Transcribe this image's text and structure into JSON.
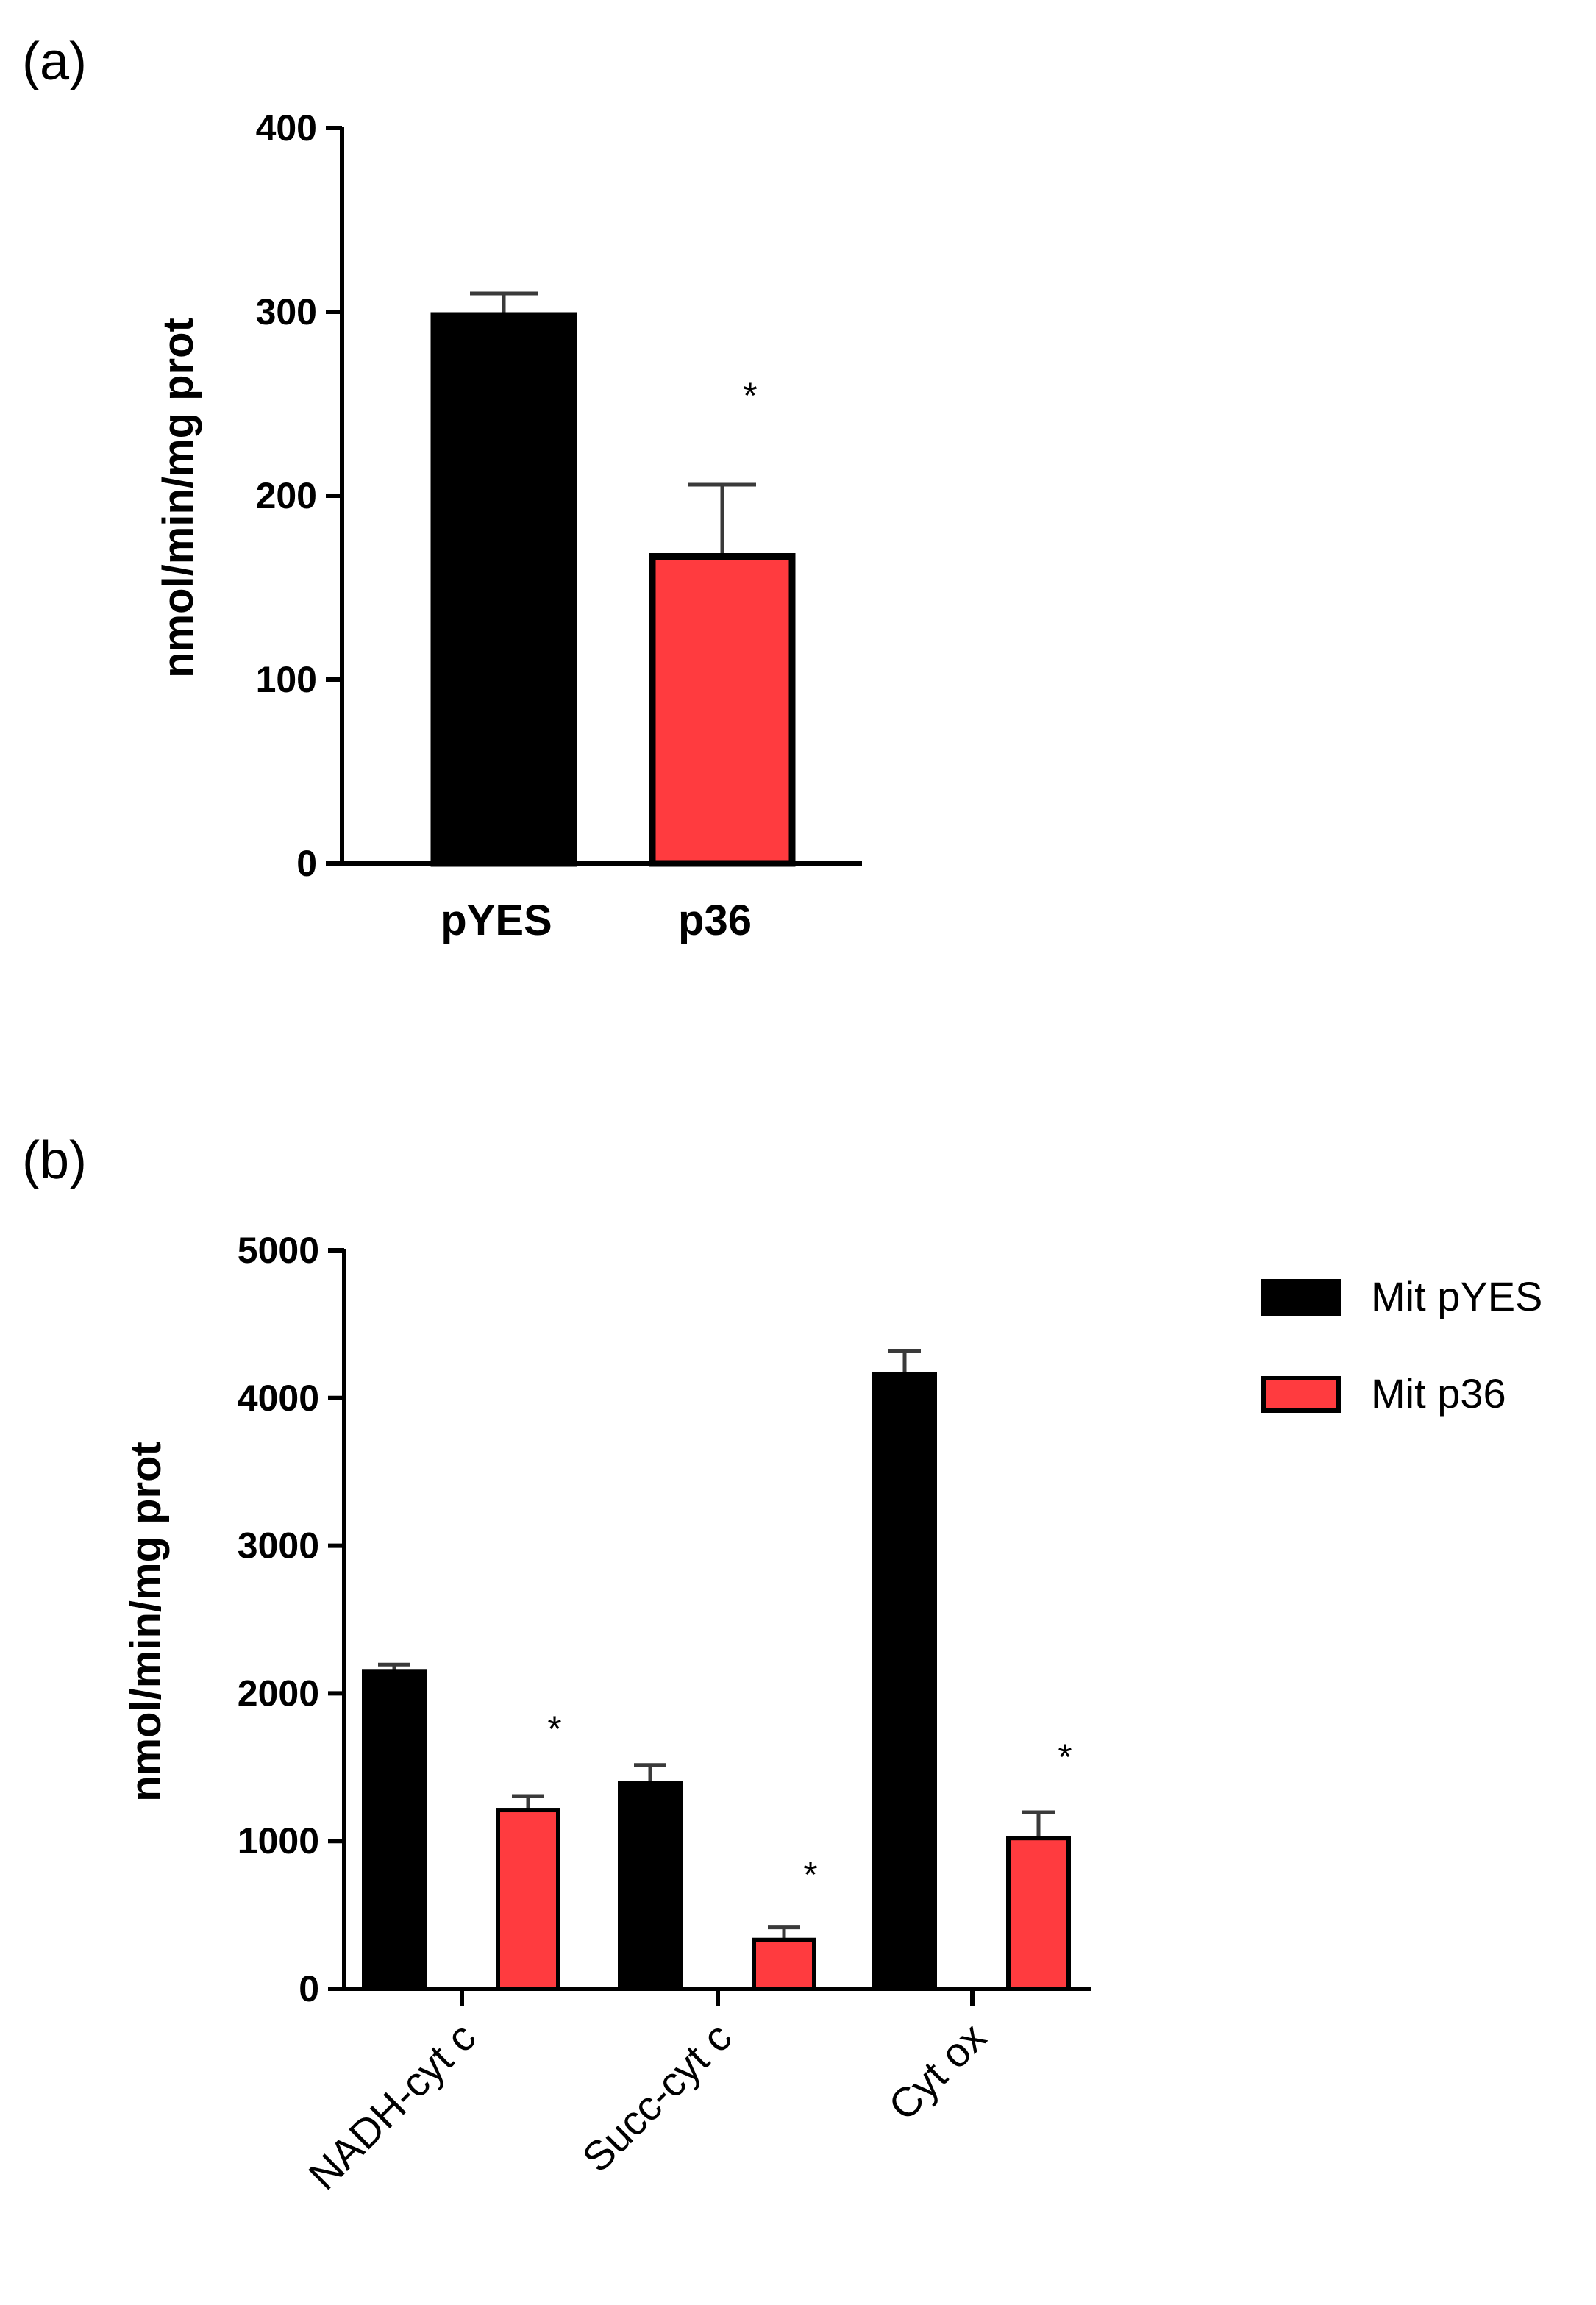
{
  "panels": {
    "a": {
      "label": "(a)"
    },
    "b": {
      "label": "(b)"
    }
  },
  "colors": {
    "control": "#000000",
    "treated": "#ff3b3f",
    "outline": "#000000",
    "error_bar_a": "#3a3a3a",
    "error_bar_b": "#3a3a3a"
  },
  "chart_data": [
    {
      "type": "bar",
      "panel": "a",
      "title": "",
      "xlabel": "",
      "ylabel": "nmol/min/mg prot",
      "ylim": [
        0,
        400
      ],
      "yticks": [
        "0",
        "100",
        "200",
        "300",
        "400"
      ],
      "categories": [
        "pYES",
        "p36"
      ],
      "values": [
        298,
        167
      ],
      "errors": [
        12,
        39
      ],
      "significance": [
        "",
        "*"
      ],
      "colors": [
        "#000000",
        "#ff3b3f"
      ]
    },
    {
      "type": "bar",
      "panel": "b",
      "title": "",
      "xlabel": "",
      "ylabel": "nmol/min/mg prot",
      "ylim": [
        0,
        5000
      ],
      "yticks": [
        "0",
        "1000",
        "2000",
        "3000",
        "4000",
        "5000"
      ],
      "categories": [
        "NADH-cyt c",
        "Succ-cyt c",
        "Cyt ox"
      ],
      "series": [
        {
          "name": "Mit pYES",
          "values": [
            2150,
            1390,
            4160
          ],
          "errors": [
            45,
            125,
            160
          ],
          "significance": [
            "",
            "",
            ""
          ],
          "color": "#000000"
        },
        {
          "name": "Mit p36",
          "values": [
            1210,
            330,
            1020
          ],
          "errors": [
            95,
            85,
            175
          ],
          "significance": [
            "*",
            "*",
            "*"
          ],
          "color": "#ff3b3f"
        }
      ],
      "legend_position": "top-right"
    }
  ]
}
